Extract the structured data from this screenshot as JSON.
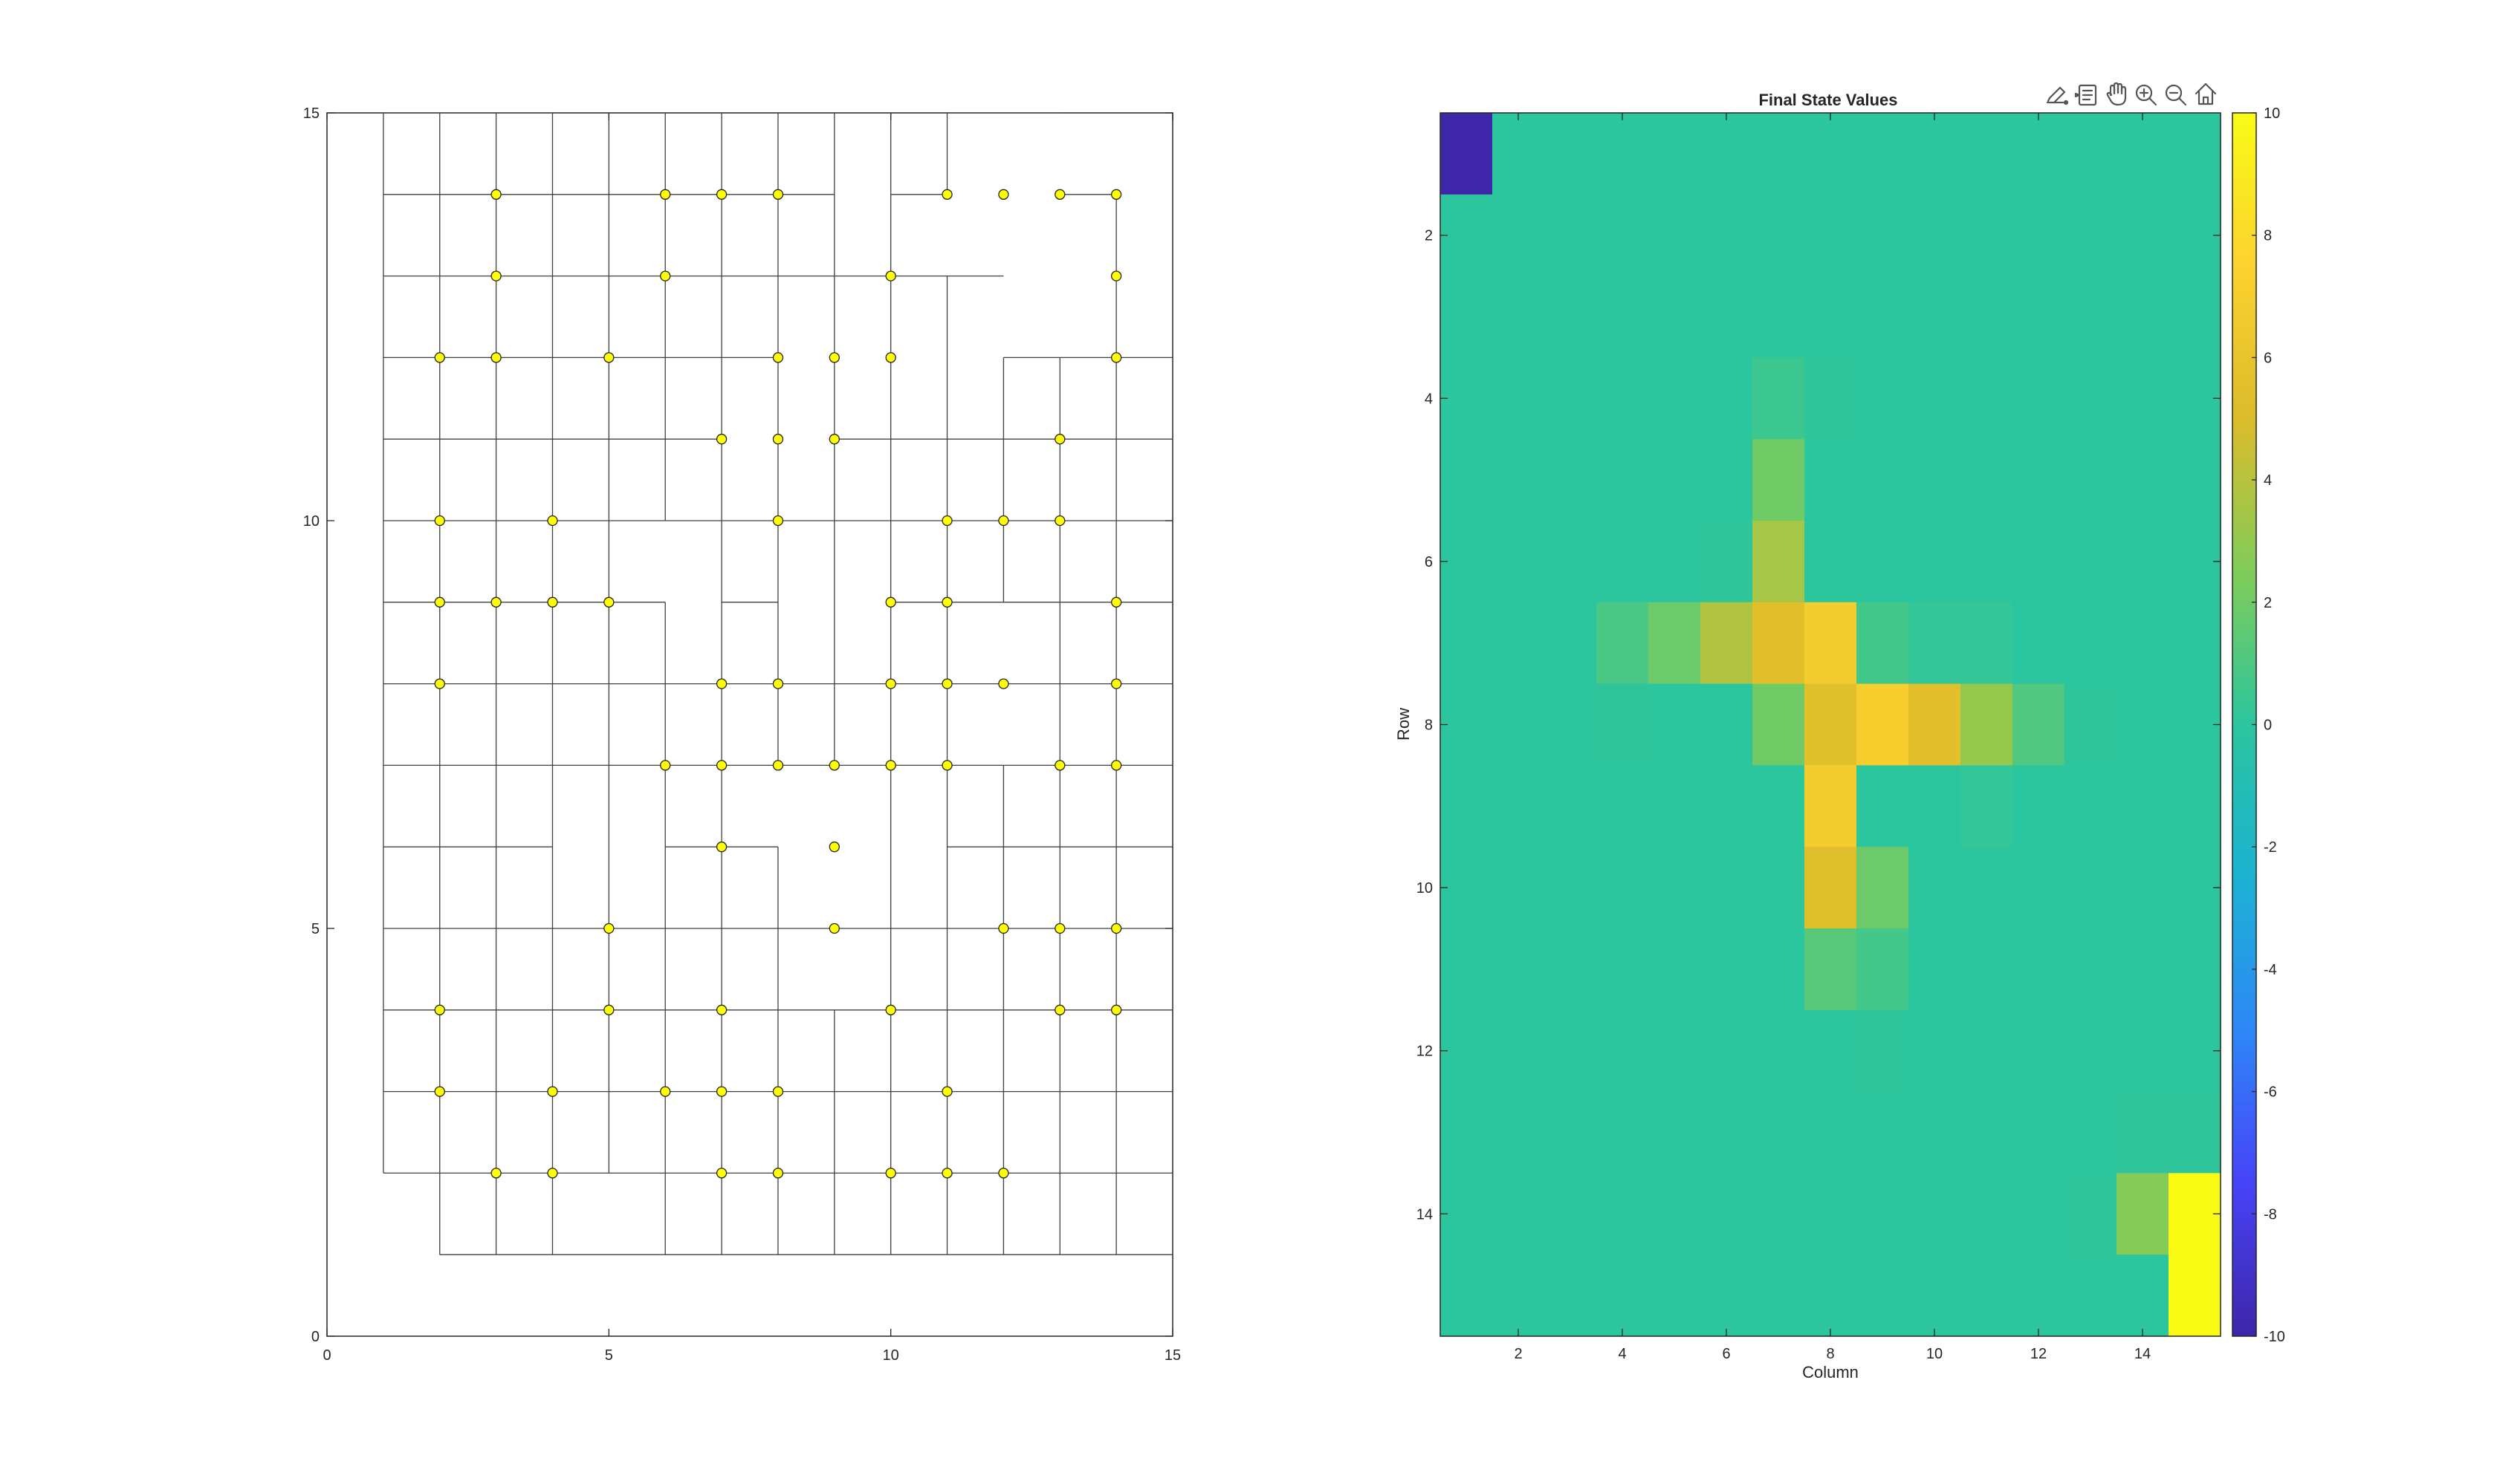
{
  "chart_data": [
    {
      "type": "scatter",
      "subtype": "grid-maze",
      "xlim": [
        0,
        15
      ],
      "ylim": [
        0,
        15
      ],
      "x_ticks": [
        0,
        5,
        10,
        15
      ],
      "y_ticks": [
        0,
        5,
        10,
        15
      ],
      "marker_color": "#ffff00",
      "line_color": "#404040",
      "h_segments": [
        [
          1,
          15,
          4,
          15
        ],
        [
          11,
          15,
          12,
          15
        ],
        [
          12,
          15,
          13,
          15
        ],
        [
          1,
          14,
          4,
          14
        ],
        [
          4,
          14,
          7,
          14
        ],
        [
          7,
          14,
          9,
          14
        ],
        [
          10,
          14,
          11,
          14
        ],
        [
          13,
          14,
          14,
          14
        ],
        [
          1,
          13,
          11,
          13
        ],
        [
          11,
          13,
          12,
          13
        ],
        [
          1,
          12,
          8,
          12
        ],
        [
          12,
          12,
          15,
          12
        ],
        [
          1,
          11,
          7,
          11
        ],
        [
          9,
          11,
          15,
          11
        ],
        [
          1,
          10,
          15,
          10
        ],
        [
          1,
          9,
          6,
          9
        ],
        [
          7,
          9,
          8,
          9
        ],
        [
          10,
          9,
          15,
          9
        ],
        [
          1,
          8,
          15,
          8
        ],
        [
          1,
          7,
          15,
          7
        ],
        [
          1,
          6,
          4,
          6
        ],
        [
          6,
          6,
          8,
          6
        ],
        [
          11,
          6,
          15,
          6
        ],
        [
          1,
          5,
          15,
          5
        ],
        [
          1,
          4,
          15,
          4
        ],
        [
          1,
          3,
          15,
          3
        ],
        [
          1,
          2,
          5,
          2
        ],
        [
          5,
          2,
          15,
          2
        ],
        [
          2,
          1,
          15,
          1
        ]
      ],
      "v_segments": [
        [
          1,
          2,
          1,
          15
        ],
        [
          2,
          1,
          2,
          15
        ],
        [
          3,
          1,
          3,
          15
        ],
        [
          4,
          1,
          4,
          15
        ],
        [
          5,
          2,
          5,
          15
        ],
        [
          6,
          1,
          6,
          9
        ],
        [
          6,
          10,
          6,
          15
        ],
        [
          7,
          1,
          7,
          15
        ],
        [
          8,
          1,
          8,
          6
        ],
        [
          8,
          7,
          8,
          15
        ],
        [
          9,
          1,
          9,
          4
        ],
        [
          9,
          7,
          9,
          15
        ],
        [
          10,
          1,
          10,
          15
        ],
        [
          11,
          1,
          11,
          13
        ],
        [
          11,
          14,
          11,
          15
        ],
        [
          12,
          1,
          12,
          7
        ],
        [
          12,
          9,
          12,
          12
        ],
        [
          13,
          1,
          13,
          12
        ],
        [
          14,
          1,
          14,
          14
        ],
        [
          15,
          1,
          15,
          15
        ]
      ],
      "points": [
        [
          3,
          14
        ],
        [
          6,
          14
        ],
        [
          7,
          14
        ],
        [
          8,
          14
        ],
        [
          11,
          14
        ],
        [
          12,
          14
        ],
        [
          13,
          14
        ],
        [
          14,
          14
        ],
        [
          3,
          13
        ],
        [
          6,
          13
        ],
        [
          10,
          13
        ],
        [
          14,
          13
        ],
        [
          2,
          12
        ],
        [
          3,
          12
        ],
        [
          5,
          12
        ],
        [
          8,
          12
        ],
        [
          9,
          12
        ],
        [
          10,
          12
        ],
        [
          14,
          12
        ],
        [
          7,
          11
        ],
        [
          8,
          11
        ],
        [
          9,
          11
        ],
        [
          13,
          11
        ],
        [
          2,
          10
        ],
        [
          4,
          10
        ],
        [
          8,
          10
        ],
        [
          11,
          10
        ],
        [
          12,
          10
        ],
        [
          13,
          10
        ],
        [
          2,
          9
        ],
        [
          3,
          9
        ],
        [
          4,
          9
        ],
        [
          5,
          9
        ],
        [
          10,
          9
        ],
        [
          11,
          9
        ],
        [
          14,
          9
        ],
        [
          2,
          8
        ],
        [
          7,
          8
        ],
        [
          8,
          8
        ],
        [
          10,
          8
        ],
        [
          11,
          8
        ],
        [
          12,
          8
        ],
        [
          14,
          8
        ],
        [
          6,
          7
        ],
        [
          7,
          7
        ],
        [
          8,
          7
        ],
        [
          9,
          7
        ],
        [
          10,
          7
        ],
        [
          11,
          7
        ],
        [
          13,
          7
        ],
        [
          14,
          7
        ],
        [
          7,
          6
        ],
        [
          9,
          6
        ],
        [
          5,
          5
        ],
        [
          9,
          5
        ],
        [
          12,
          5
        ],
        [
          13,
          5
        ],
        [
          14,
          5
        ],
        [
          2,
          4
        ],
        [
          5,
          4
        ],
        [
          7,
          4
        ],
        [
          10,
          4
        ],
        [
          13,
          4
        ],
        [
          14,
          4
        ],
        [
          2,
          3
        ],
        [
          4,
          3
        ],
        [
          6,
          3
        ],
        [
          7,
          3
        ],
        [
          8,
          3
        ],
        [
          11,
          3
        ],
        [
          3,
          2
        ],
        [
          4,
          2
        ],
        [
          7,
          2
        ],
        [
          8,
          2
        ],
        [
          10,
          2
        ],
        [
          11,
          2
        ],
        [
          12,
          2
        ]
      ]
    },
    {
      "type": "heatmap",
      "title": "Final State Values",
      "xlabel": "Column",
      "ylabel": "Row",
      "rows": 15,
      "cols": 15,
      "clim": [
        -10,
        10
      ],
      "x_ticks": [
        2,
        4,
        6,
        8,
        10,
        12,
        14
      ],
      "y_ticks": [
        2,
        4,
        6,
        8,
        10,
        12,
        14
      ],
      "colorbar_ticks": [
        10,
        8,
        6,
        4,
        2,
        0,
        -2,
        -4,
        -6,
        -8,
        -10
      ],
      "colormap": [
        "#3e26a8",
        "#4743f8",
        "#2e87f7",
        "#1cb2d3",
        "#2bc59e",
        "#81cc59",
        "#dbbc2b",
        "#fcd22f",
        "#f9fb15"
      ],
      "values": [
        [
          -10,
          0,
          0,
          0,
          0,
          0,
          0,
          0,
          0,
          0,
          0,
          0,
          0,
          0,
          0
        ],
        [
          0,
          0,
          0,
          0,
          0,
          0,
          0,
          0,
          0,
          0,
          0,
          0,
          0,
          0,
          0
        ],
        [
          0,
          0,
          0,
          0,
          0,
          0,
          0,
          0,
          0,
          0,
          0,
          0,
          0,
          0,
          0
        ],
        [
          0,
          0,
          0,
          0,
          0,
          0,
          0.5,
          0.1,
          0,
          0,
          0,
          0,
          0,
          0,
          0
        ],
        [
          0,
          0,
          0,
          0,
          0,
          0,
          2,
          0,
          0,
          0,
          0,
          0,
          0,
          0,
          0
        ],
        [
          0,
          0,
          0,
          0,
          0,
          0.1,
          3.5,
          0,
          0,
          0,
          0,
          0,
          0,
          0,
          0
        ],
        [
          0,
          0,
          0,
          0.9,
          1.9,
          3.8,
          5.5,
          6.8,
          0.7,
          0.2,
          0.2,
          0,
          0,
          0,
          0
        ],
        [
          0,
          0,
          0,
          0.1,
          0,
          0,
          2,
          5.4,
          7.1,
          5.5,
          3.1,
          1.1,
          0.1,
          0,
          0
        ],
        [
          0,
          0,
          0,
          0,
          0,
          0,
          0,
          6.8,
          0,
          0,
          0.2,
          0,
          0,
          0,
          0
        ],
        [
          0,
          0,
          0,
          0,
          0,
          0,
          0,
          5.3,
          1.9,
          0,
          0,
          0,
          0,
          0,
          0
        ],
        [
          0,
          0,
          0,
          0,
          0,
          0,
          0,
          1.3,
          0.7,
          0,
          0,
          0,
          0,
          0,
          0
        ],
        [
          0,
          0,
          0,
          0,
          0,
          0,
          0,
          0,
          0.1,
          0,
          0,
          0,
          0,
          0,
          0
        ],
        [
          0,
          0,
          0,
          0,
          0,
          0,
          0,
          0,
          0,
          0,
          0,
          0,
          0,
          0.1,
          0.1
        ],
        [
          0,
          0,
          0,
          0,
          0,
          0,
          0,
          0,
          0,
          0,
          0,
          0,
          0.1,
          2.6,
          10
        ],
        [
          0,
          0,
          0,
          0,
          0,
          0,
          0,
          0,
          0,
          0,
          0,
          0,
          0,
          0,
          10
        ]
      ]
    }
  ],
  "toolbar": {
    "icons": [
      "brush-icon",
      "datatip-icon",
      "pan-hand-icon",
      "zoom-in-icon",
      "zoom-out-icon",
      "home-icon"
    ]
  }
}
